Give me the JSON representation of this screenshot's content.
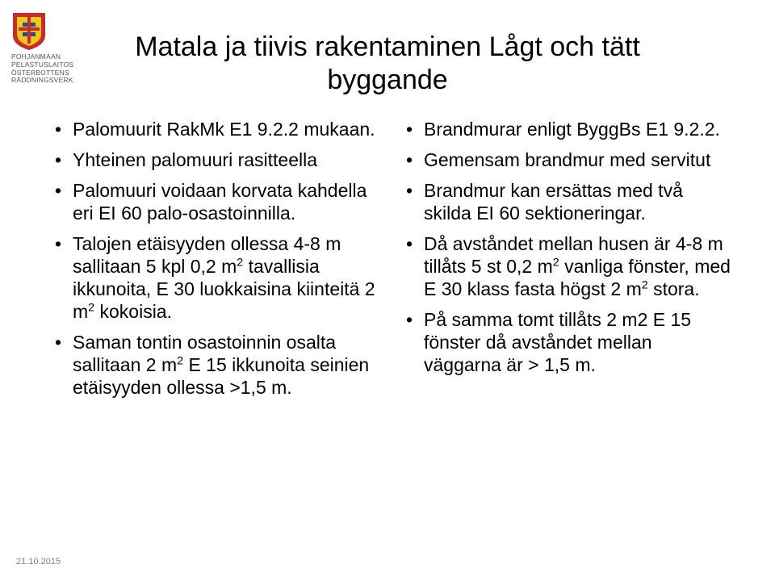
{
  "org": {
    "line1": "POHJANMAAN PELASTUSLAITOS",
    "line2": "ÖSTERBOTTENS RÄDDNINGSVERK",
    "text_color": "#555555"
  },
  "logo": {
    "shield_red": "#cc2a2a",
    "shield_yellow": "#f0c818",
    "shield_blue": "#2a4a9c"
  },
  "title": "Matala ja tiivis rakentaminen Lågt och tätt byggande",
  "title_fontsize": 34,
  "body_fontsize": 23,
  "columns": {
    "left": [
      "Palomuurit RakMk E1 9.2.2 mukaan.",
      "Yhteinen palomuuri rasitteella",
      "Palomuuri voidaan korvata kahdella eri EI 60 palo-osastoinnilla.",
      "Talojen etäisyyden ollessa 4-8 m sallitaan 5 kpl 0,2 m² tavallisia ikkunoita, E 30 luokkaisina kiinteitä 2 m² kokoisia.",
      "Saman tontin osastoinnin osalta sallitaan 2 m² E 15 ikkunoita seinien etäisyyden ollessa >1,5 m."
    ],
    "right": [
      "Brandmurar enligt ByggBs E1 9.2.2.",
      "Gemensam brandmur med servitut",
      "Brandmur kan ersättas med två skilda EI 60 sektioneringar.",
      "Då avståndet mellan husen är 4-8 m tillåts 5 st 0,2 m² vanliga fönster, med E 30 klass fasta högst 2 m² stora.",
      "På samma tomt tillåts 2 m2 E 15 fönster då avståndet mellan väggarna är > 1,5 m."
    ]
  },
  "date": "21.10.2015",
  "colors": {
    "background": "#ffffff",
    "text": "#000000",
    "date": "#808080"
  }
}
